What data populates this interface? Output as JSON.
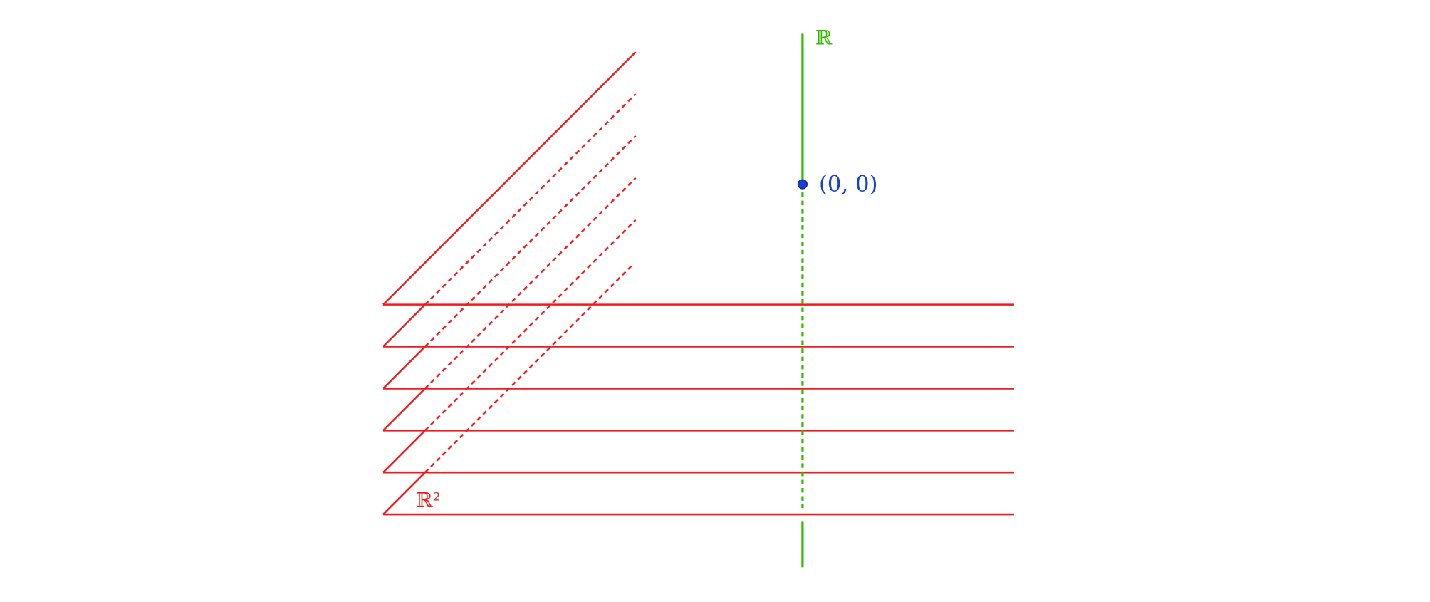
{
  "labels": {
    "real_line": "ℝ",
    "origin": "(0, 0)",
    "plane": "ℝ²"
  }
}
